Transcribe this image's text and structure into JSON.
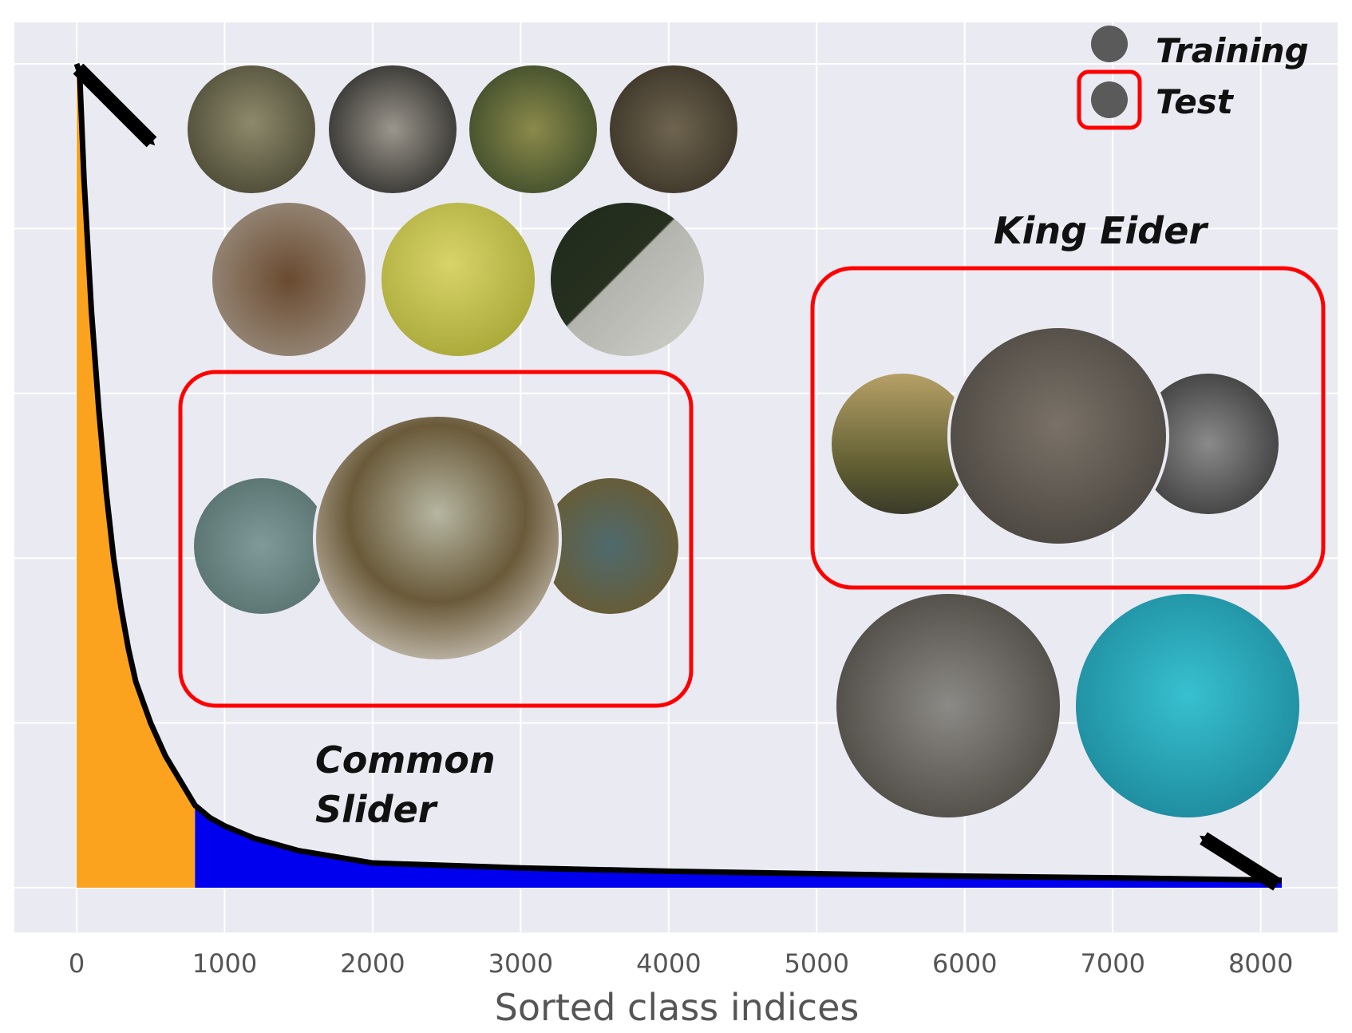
{
  "chart_data": {
    "type": "area",
    "title": "",
    "xlabel": "Sorted class indices",
    "ylabel": "",
    "xlim": [
      0,
      8142
    ],
    "xticks": [
      0,
      1000,
      2000,
      3000,
      4000,
      5000,
      6000,
      7000,
      8000
    ],
    "tick_labels": [
      "0",
      "1000",
      "2000",
      "3000",
      "4000",
      "5000",
      "6000",
      "7000",
      "8000"
    ],
    "ylim": [
      0,
      1
    ],
    "y_normalized": true,
    "grid": true,
    "curve": {
      "x": [
        0,
        20,
        50,
        100,
        150,
        200,
        250,
        300,
        350,
        400,
        500,
        600,
        700,
        800,
        900,
        1000,
        1200,
        1500,
        2000,
        3000,
        4000,
        5000,
        6000,
        7000,
        8142
      ],
      "y": [
        1.0,
        0.99,
        0.86,
        0.7,
        0.58,
        0.48,
        0.4,
        0.34,
        0.29,
        0.25,
        0.2,
        0.16,
        0.13,
        0.1,
        0.085,
        0.075,
        0.06,
        0.045,
        0.03,
        0.024,
        0.02,
        0.017,
        0.014,
        0.012,
        0.009
      ]
    },
    "regions": [
      {
        "name": "head",
        "x_range": [
          0,
          800
        ],
        "color": "#FBA31F"
      },
      {
        "name": "tail",
        "x_range": [
          800,
          8142
        ],
        "color": "#0000EE"
      }
    ],
    "legend": {
      "placement": "top-right",
      "entries": [
        {
          "label": "Training",
          "marker": "circle",
          "color": "#5A5A5A",
          "boxed": false
        },
        {
          "label": "Test",
          "marker": "circle",
          "color": "#5A5A5A",
          "boxed": true,
          "box_color": "#FF0000"
        }
      ]
    },
    "annotations": [
      {
        "lines": [
          "Common",
          "Slider"
        ],
        "class_position": "head"
      },
      {
        "lines": [
          "King Eider"
        ],
        "class_position": "tail"
      }
    ],
    "colors": {
      "background": "#EAEAF2",
      "grid": "#FFFFFF",
      "curve": "#000000",
      "test_box": "#FF0000"
    }
  }
}
